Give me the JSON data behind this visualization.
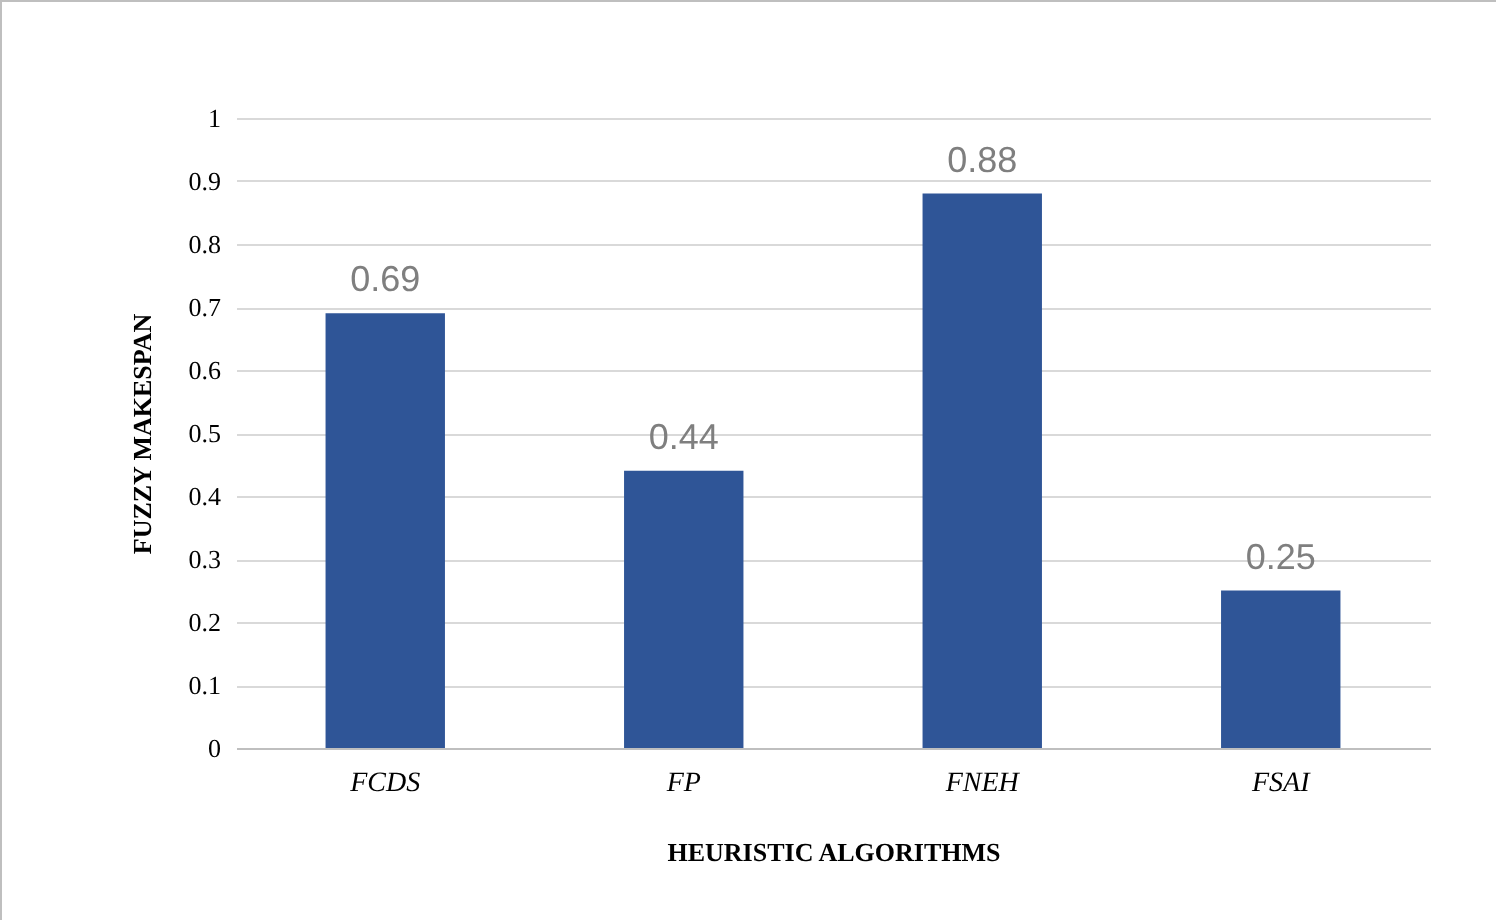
{
  "chart_data": {
    "type": "bar",
    "xlabel": "HEURISTIC ALGORITHMS",
    "ylabel": "FUZZY MAKESPAN",
    "categories": [
      "FCDS",
      "FP",
      "FNEH",
      "FSAI"
    ],
    "values": [
      0.69,
      0.44,
      0.88,
      0.25
    ],
    "color": "#2f5597",
    "ylim": [
      0,
      1
    ],
    "yticks": [
      0,
      0.1,
      0.2,
      0.3,
      0.4,
      0.5,
      0.6,
      0.7,
      0.8,
      0.9,
      1
    ],
    "grid": "y",
    "data_labels": true
  }
}
